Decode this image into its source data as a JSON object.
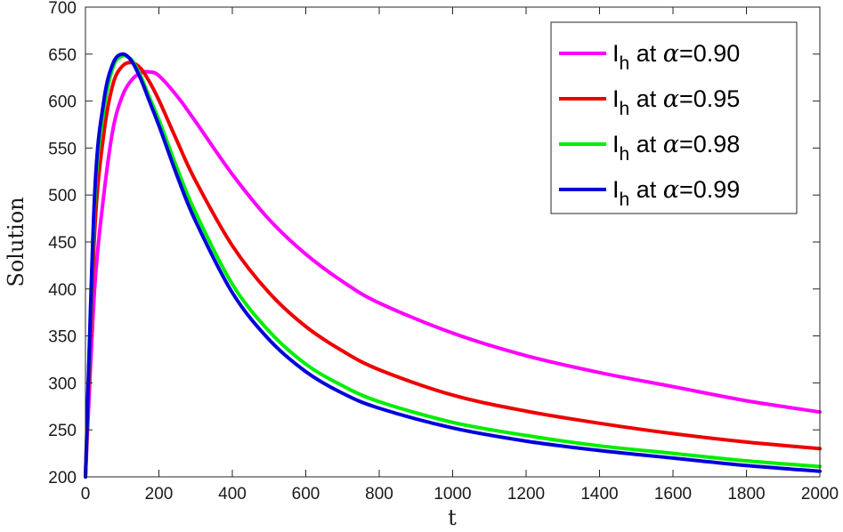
{
  "chart_data": {
    "type": "line",
    "xlabel": "t",
    "ylabel": "Solution",
    "xlim": [
      0,
      2000
    ],
    "ylim": [
      200,
      700
    ],
    "xticks": [
      "0",
      "200",
      "400",
      "600",
      "800",
      "1000",
      "1200",
      "1400",
      "1600",
      "1800",
      "2000"
    ],
    "yticks": [
      "200",
      "250",
      "300",
      "350",
      "400",
      "450",
      "500",
      "550",
      "600",
      "650",
      "700"
    ],
    "grid": false,
    "legend_position": "top-right",
    "series": [
      {
        "name": "I_h at α=0.90",
        "legend_main": "I",
        "legend_sub": "h",
        "legend_mid": " at ",
        "legend_alpha": "α",
        "legend_tail": "=0.90",
        "color": "#ff00ff",
        "x": [
          0,
          25,
          50,
          75,
          100,
          125,
          150,
          175,
          200,
          250,
          300,
          400,
          500,
          600,
          700,
          800,
          1000,
          1200,
          1400,
          1600,
          1800,
          2000
        ],
        "y": [
          200,
          400,
          500,
          570,
          605,
          622,
          630,
          631,
          627,
          605,
          578,
          522,
          474,
          437,
          408,
          385,
          353,
          329,
          311,
          296,
          281,
          269
        ]
      },
      {
        "name": "I_h at α=0.95",
        "legend_main": "I",
        "legend_sub": "h",
        "legend_mid": " at ",
        "legend_alpha": "α",
        "legend_tail": "=0.95",
        "color": "#ee0000",
        "x": [
          0,
          25,
          50,
          75,
          100,
          125,
          150,
          175,
          200,
          250,
          300,
          400,
          500,
          600,
          700,
          800,
          1000,
          1200,
          1400,
          1600,
          1800,
          2000
        ],
        "y": [
          200,
          460,
          565,
          618,
          637,
          641,
          635,
          620,
          601,
          557,
          515,
          446,
          396,
          360,
          334,
          314,
          287,
          270,
          257,
          246,
          237,
          230
        ]
      },
      {
        "name": "I_h at α=0.98",
        "legend_main": "I",
        "legend_sub": "h",
        "legend_mid": " at ",
        "legend_alpha": "α",
        "legend_tail": "=0.98",
        "color": "#00ee00",
        "x": [
          0,
          25,
          50,
          75,
          100,
          125,
          150,
          175,
          200,
          250,
          300,
          400,
          500,
          600,
          700,
          800,
          1000,
          1200,
          1400,
          1600,
          1800,
          2000
        ],
        "y": [
          200,
          490,
          590,
          636,
          648,
          644,
          627,
          603,
          580,
          528,
          481,
          405,
          355,
          320,
          297,
          280,
          258,
          244,
          233,
          225,
          217,
          211
        ]
      },
      {
        "name": "I_h at α=0.99",
        "legend_main": "I",
        "legend_sub": "h",
        "legend_mid": " at ",
        "legend_alpha": "α",
        "legend_tail": "=0.99",
        "color": "#0000dd",
        "x": [
          0,
          25,
          50,
          75,
          100,
          125,
          150,
          175,
          200,
          250,
          300,
          400,
          500,
          600,
          700,
          800,
          1000,
          1200,
          1400,
          1600,
          1800,
          2000
        ],
        "y": [
          200,
          500,
          600,
          640,
          650,
          643,
          624,
          599,
          574,
          520,
          472,
          396,
          346,
          312,
          289,
          273,
          252,
          238,
          228,
          220,
          212,
          206
        ]
      }
    ]
  }
}
